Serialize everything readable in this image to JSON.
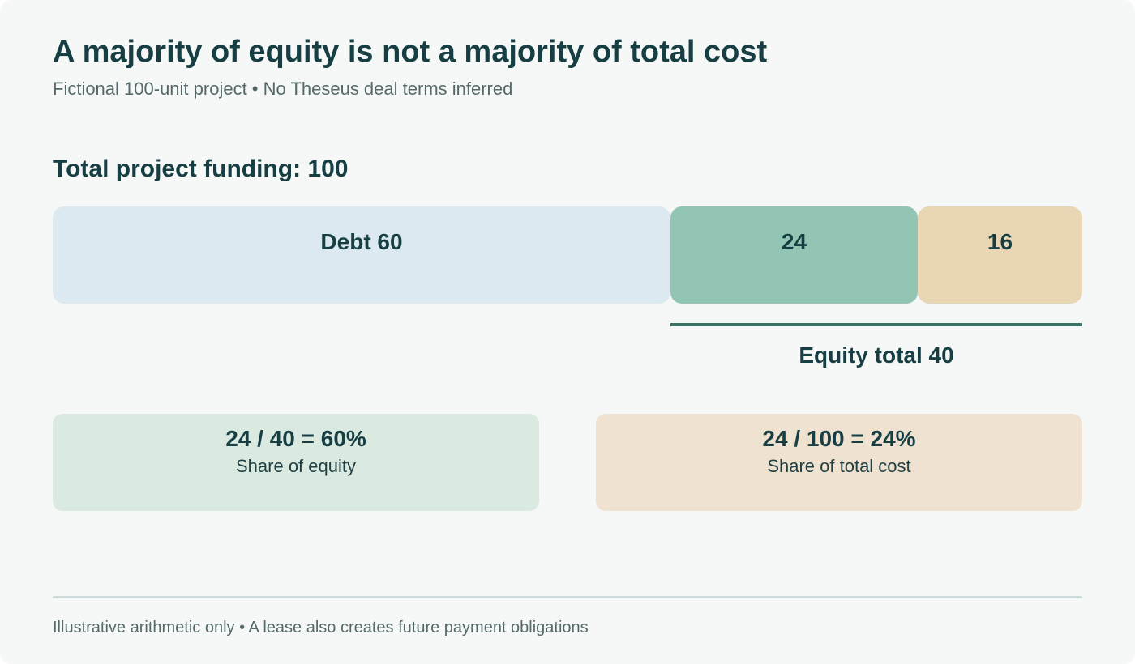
{
  "title": "A majority of equity is not a majority of total cost",
  "subtitle": "Fictional 100-unit project • No Theseus deal terms inferred",
  "funding": {
    "heading": "Total project funding: 100",
    "total": 100,
    "segments": [
      {
        "id": "debt",
        "label": "Debt 60",
        "value": 60,
        "color": "#dce9f1"
      },
      {
        "id": "equity-a",
        "label": "24",
        "value": 24,
        "color": "#93c5b4"
      },
      {
        "id": "equity-b",
        "label": "16",
        "value": 16,
        "color": "#e9d6b4"
      }
    ]
  },
  "equity_total": {
    "label": "Equity total 40",
    "value": 40,
    "line_color": "#3e7268"
  },
  "ratios": [
    {
      "formula": "24 / 40 = 60%",
      "label": "Share of equity",
      "color": "#dbeae1"
    },
    {
      "formula": "24 / 100 = 24%",
      "label": "Share of total cost",
      "color": "#efe2d0"
    }
  ],
  "footnote": "Illustrative arithmetic only • A lease also creates future payment obligations"
}
